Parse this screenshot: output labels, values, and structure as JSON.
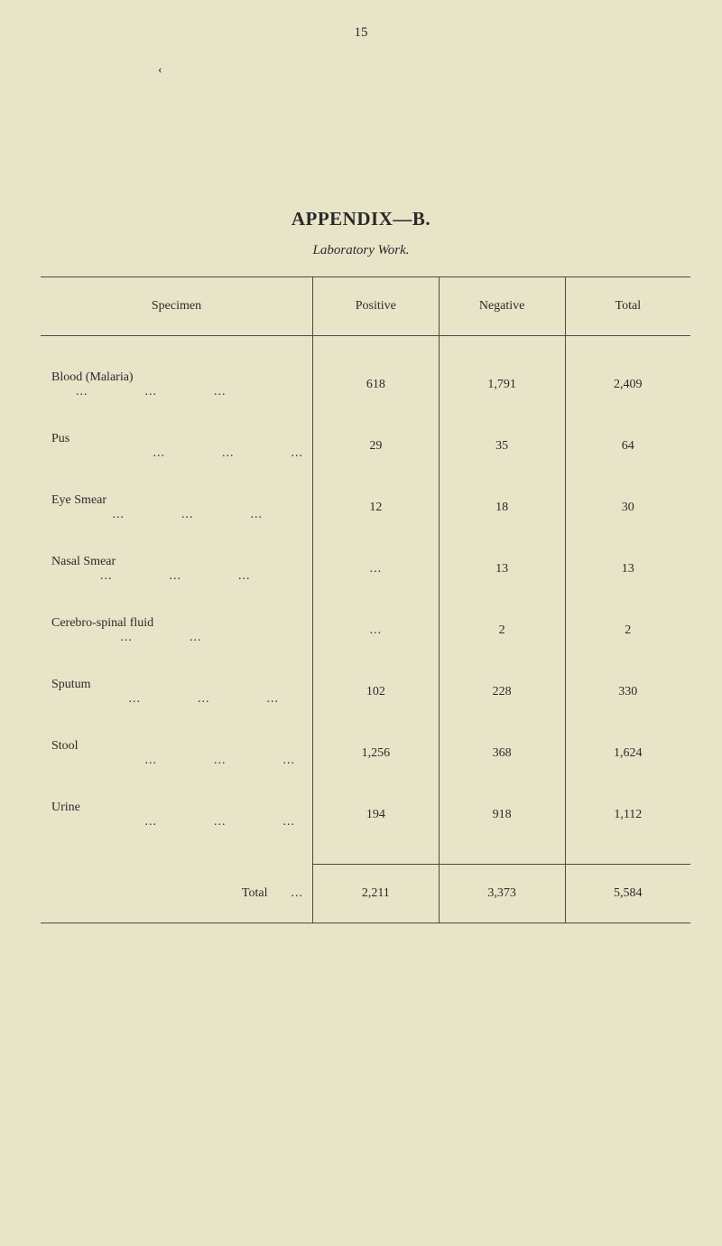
{
  "page_number": "15",
  "quote_mark": "‹",
  "title": "APPENDIX—B.",
  "subtitle": "Laboratory Work.",
  "columns": {
    "specimen": "Specimen",
    "positive": "Positive",
    "negative": "Negative",
    "total": "Total"
  },
  "rows": [
    {
      "specimen": "Blood (Malaria)",
      "positive": "618",
      "negative": "1,791",
      "total": "2,409"
    },
    {
      "specimen": "Pus",
      "positive": "29",
      "negative": "35",
      "total": "64"
    },
    {
      "specimen": "Eye Smear",
      "positive": "12",
      "negative": "18",
      "total": "30"
    },
    {
      "specimen": "Nasal Smear",
      "positive": "...",
      "negative": "13",
      "total": "13"
    },
    {
      "specimen": "Cerebro-spinal fluid",
      "positive": "...",
      "negative": "2",
      "total": "2"
    },
    {
      "specimen": "Sputum",
      "positive": "102",
      "negative": "228",
      "total": "330"
    },
    {
      "specimen": "Stool",
      "positive": "1,256",
      "negative": "368",
      "total": "1,624"
    },
    {
      "specimen": "Urine",
      "positive": "194",
      "negative": "918",
      "total": "1,112"
    }
  ],
  "total_label": "Total",
  "totals": {
    "positive": "2,211",
    "negative": "3,373",
    "total": "5,584"
  },
  "leader_dots": "...",
  "colors": {
    "background": "#e8e4c8",
    "text": "#2a2a2a",
    "rule": "#4a4a4a"
  },
  "typography": {
    "body_fontsize": 14,
    "title_fontsize": 21,
    "subtitle_fontsize": 15,
    "font_family": "Georgia, serif"
  }
}
